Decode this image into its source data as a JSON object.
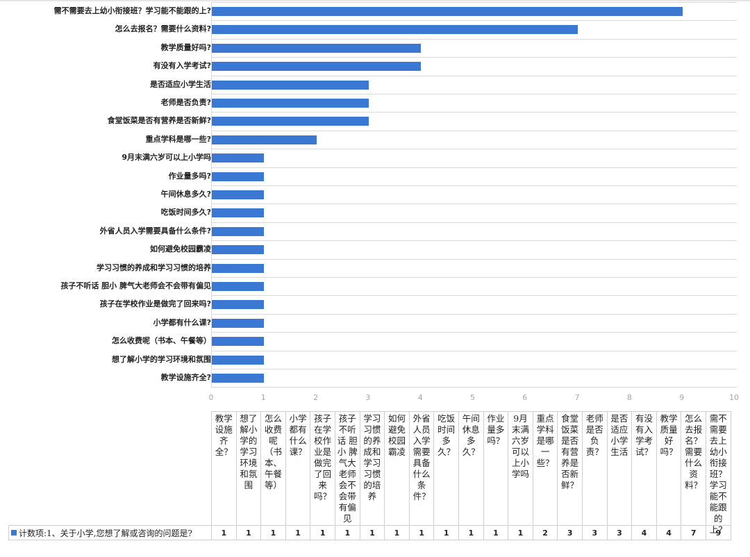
{
  "chart_data": {
    "type": "bar",
    "orientation": "horizontal",
    "title": "",
    "xlabel": "",
    "ylabel": "",
    "xlim": [
      0,
      10
    ],
    "x_ticks": [
      "0",
      "1",
      "2",
      "3",
      "4",
      "5",
      "6",
      "7",
      "8",
      "9",
      "10"
    ],
    "grid": true,
    "legend_position": "bottom-left (data table legend key)",
    "series": [
      {
        "name": "计数项:1、关于小学,您想了解或咨询的问题是?",
        "color": "#3a78d4"
      }
    ],
    "categories": [
      "教学设施齐全?",
      "想了解小学的学习环境和氛围",
      "怎么收费呢（书本、午餐等）",
      "小学都有什么课?",
      "孩子在学校作业是做完了回来吗?",
      "孩子不听话 胆小 脾气大老师会不会带有偏见",
      "学习习惯的养成和学习习惯的培养",
      "如何避免校园霸凌",
      "外省人员入学需要具备什么条件?",
      "吃饭时间多久?",
      "午间休息多久?",
      "作业量多吗?",
      "9月末满六岁可以上小学吗",
      "重点学科是哪一些?",
      "食堂饭菜是否有营养是否新鲜?",
      "老师是否负责?",
      "是否适应小学生活",
      "有没有入学考试?",
      "教学质量好吗?",
      "怎么去报名? 需要什么资料?",
      "需不需要去上幼小衔接班? 学习能不能跟的上?"
    ],
    "values": [
      1,
      1,
      1,
      1,
      1,
      1,
      1,
      1,
      1,
      1,
      1,
      1,
      1,
      2,
      3,
      3,
      3,
      4,
      4,
      7,
      9
    ]
  },
  "axis_labels": {
    "rows_top_to_bottom": [
      "需不需要去上幼小衔接班？学习能不能跟的上?",
      "怎么去报名？需要什么资料?",
      "教学质量好吗?",
      "有没有入学考试?",
      "是否适应小学生活",
      "老师是否负责?",
      "食堂饭菜是否有营养是否新鲜?",
      "重点学科是哪一些?",
      "9月末满六岁可以上小学吗",
      "作业量多吗?",
      "午间休息多久?",
      "吃饭时间多久?",
      "外省人员入学需要具备什么条件?",
      "如何避免校园霸凌",
      "学习习惯的养成和学习习惯的培养",
      "孩子不听话  胆小  脾气大老师会不会带有偏见",
      "孩子在学校作业是做完了回来吗?",
      "小学都有什么课?",
      "怎么收费呢（书本、午餐等）",
      "想了解小学的学习环境和氛围",
      "教学设施齐全?"
    ],
    "values_top_to_bottom": [
      9,
      7,
      4,
      4,
      3,
      3,
      3,
      2,
      1,
      1,
      1,
      1,
      1,
      1,
      1,
      1,
      1,
      1,
      1,
      1,
      1
    ]
  },
  "data_table": {
    "legend_label": "计数项:1、关于小学,您想了解或咨询的问题是?",
    "columns": [
      "教学设施齐全？",
      "想了解小学的学习环境和氛围",
      "怎么收费呢（书本、午餐等）",
      "小学都有什么课？",
      "孩子在学校作业是做完了回来吗？",
      "孩子不听话 胆小 脾气大老师会不会带有偏见",
      "学习习惯的养成和学习习惯的培养",
      "如何避免校园霸凌",
      "外省人员入学需要具备什么条件？",
      "吃饭时间多久？",
      "午间休息多久？",
      "作业量多吗？",
      "9月末满六岁可以上小学吗",
      "重点学科是哪一些？",
      "食堂饭菜是否有营养是否新鲜？",
      "老师是否负责？",
      "是否适应小学生活",
      "有没有入学考试？",
      "教学质量好吗？",
      "怎么去报名？需要什么资料？",
      "需不需要去上幼小衔接班？学习能不能跟的上？"
    ],
    "values": [
      "1",
      "1",
      "1",
      "1",
      "1",
      "1",
      "1",
      "1",
      "1",
      "1",
      "1",
      "1",
      "1",
      "2",
      "3",
      "3",
      "3",
      "4",
      "4",
      "7",
      "9"
    ]
  }
}
